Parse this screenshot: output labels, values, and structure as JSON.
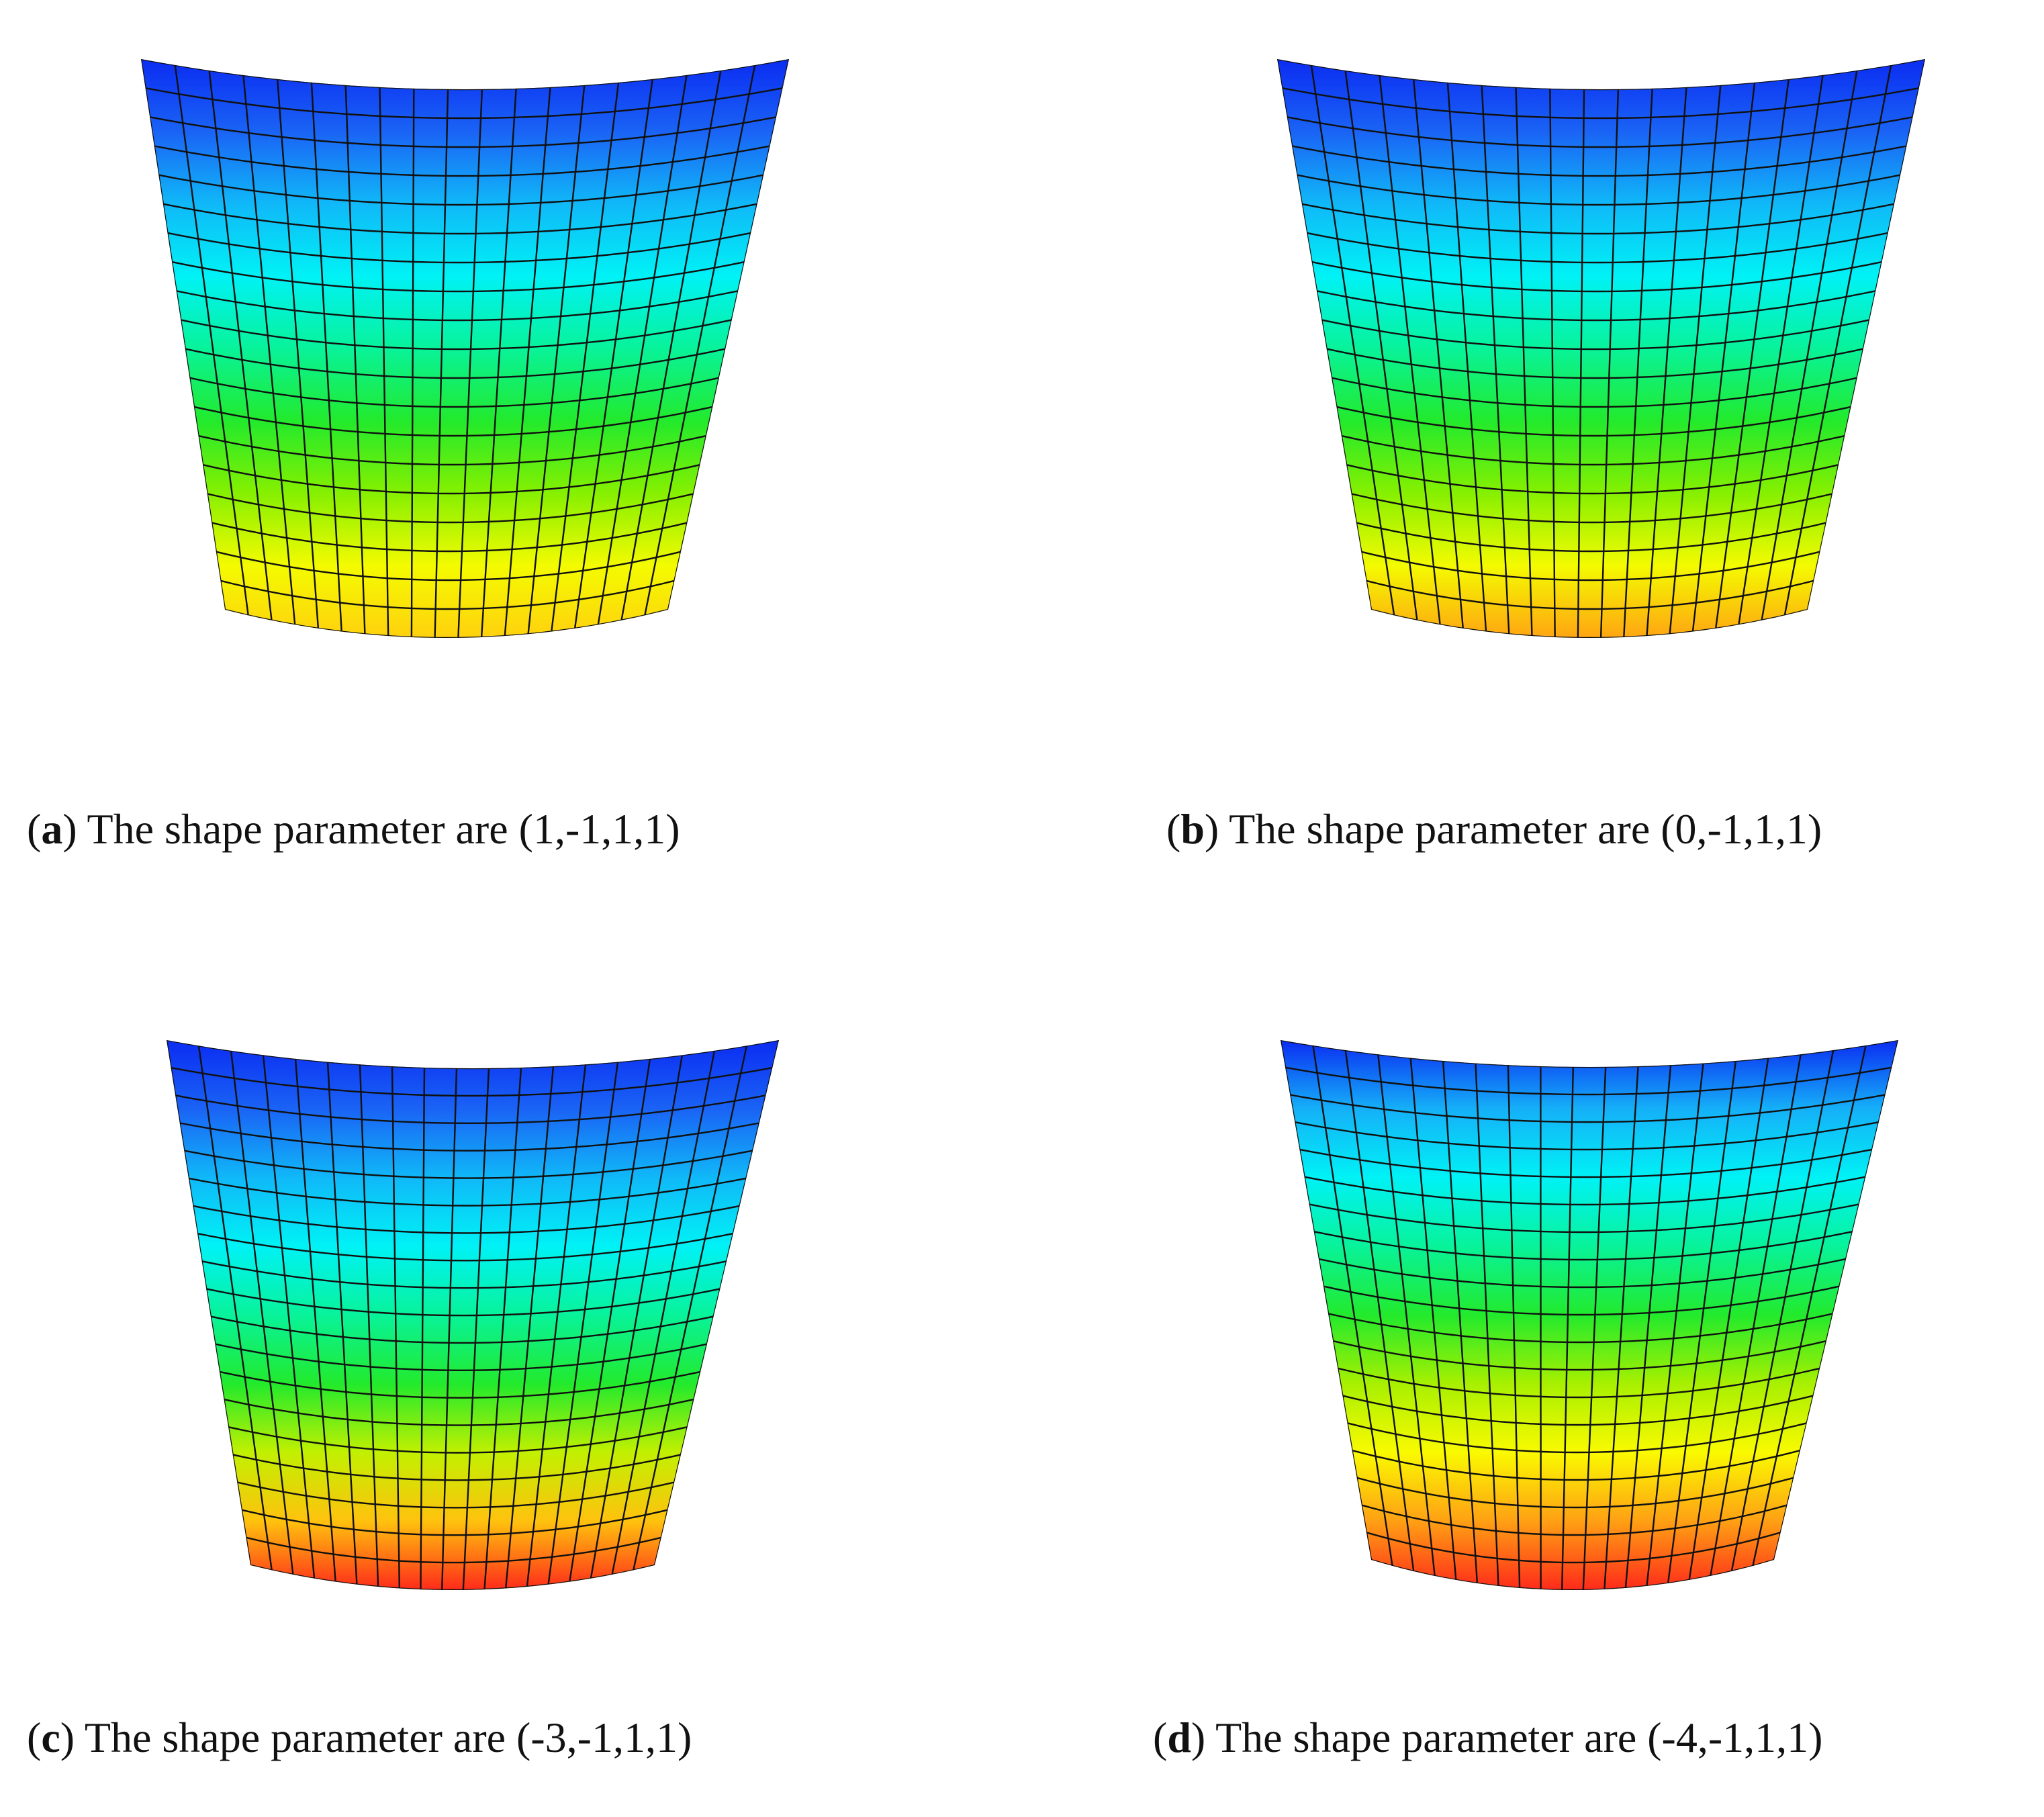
{
  "panels": [
    {
      "letter": "a",
      "caption_text": " The shape parameter are (1,-1,1,1)",
      "colors": [
        "#0b2cf2",
        "#1a63f5",
        "#10b8f8",
        "#00f2f6",
        "#08f39a",
        "#22ea2c",
        "#86f000",
        "#f4fb00",
        "#ffd10e"
      ]
    },
    {
      "letter": "b",
      "caption_text": " The shape parameter are (0,-1,1,1)",
      "colors": [
        "#0b2cf2",
        "#1a63f5",
        "#10b8f8",
        "#00f2f6",
        "#08f39a",
        "#22ea2c",
        "#86f000",
        "#f4fb00",
        "#ffa512"
      ]
    },
    {
      "letter": "c",
      "caption_text": " The shape parameter are (-3,-1,1,1)",
      "colors": [
        "#0b2cf2",
        "#1a63f5",
        "#10b8f8",
        "#00f2f6",
        "#08f39a",
        "#22ea2c",
        "#c2f000",
        "#ffc20e",
        "#ff2a1a"
      ]
    },
    {
      "letter": "d",
      "caption_text": " The shape parameter are (-4,-1,1,1)",
      "colors": [
        "#0b2cf2",
        "#15b0f8",
        "#00f2f6",
        "#08f39a",
        "#22ea2c",
        "#a8f000",
        "#fafa00",
        "#ffa014",
        "#ff2a1a"
      ]
    }
  ]
}
